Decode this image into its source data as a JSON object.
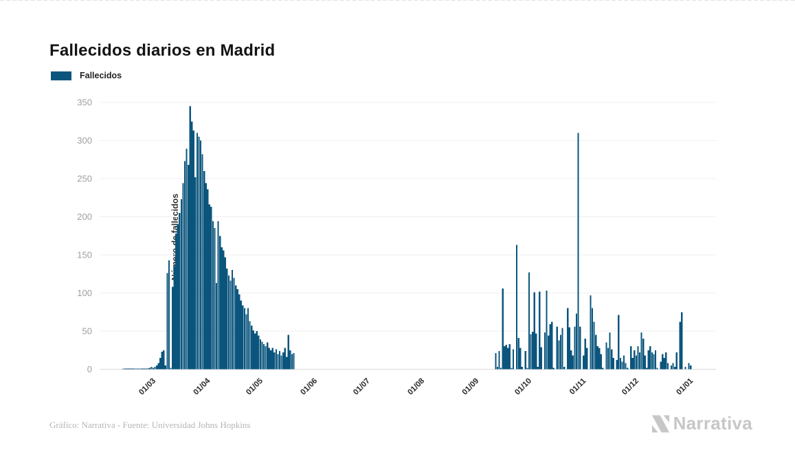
{
  "page": {
    "title": "Fallecidos diarios en Madrid",
    "credit": "Gráfico: Narrativa - Fuente: Universidad Johns Hopkins",
    "brand": "Narrativa"
  },
  "legend": {
    "label": "Fallecidos",
    "color": "#0b557d"
  },
  "chart_data": {
    "type": "bar",
    "title": "Fallecidos diarios en Madrid",
    "series_name": "Fallecidos",
    "xlabel": "",
    "ylabel": "Número de fallecidos",
    "ylim": [
      0,
      350
    ],
    "yticks": [
      0,
      50,
      100,
      150,
      200,
      250,
      300,
      350
    ],
    "xtick_labels": [
      "01/03",
      "01/04",
      "01/05",
      "01/06",
      "01/07",
      "01/08",
      "01/09",
      "01/10",
      "01/11",
      "01/12",
      "01/01"
    ],
    "grid": "horizontal",
    "legend_position": "top-left",
    "bar_color": "#0b557d",
    "series": [
      {
        "name": "Fallecidos",
        "start_date": "13/02/2020",
        "frequency": "daily",
        "values": [
          1,
          1,
          1,
          1,
          1,
          1,
          1,
          1,
          1,
          1,
          1,
          1,
          1,
          1,
          1,
          2,
          3,
          2,
          3,
          5,
          8,
          15,
          23,
          25,
          5,
          126,
          143,
          2,
          108,
          135,
          178,
          190,
          205,
          223,
          244,
          273,
          289,
          268,
          345,
          325,
          313,
          252,
          310,
          305,
          300,
          282,
          260,
          244,
          236,
          216,
          213,
          194,
          185,
          113,
          194,
          175,
          160,
          156,
          147,
          132,
          123,
          116,
          130,
          120,
          110,
          105,
          98,
          90,
          84,
          80,
          72,
          80,
          63,
          57,
          51,
          47,
          50,
          44,
          39,
          36,
          33,
          30,
          35,
          28,
          25,
          28,
          22,
          26,
          20,
          24,
          18,
          22,
          28,
          16,
          45,
          25,
          20,
          21,
          0,
          0,
          0,
          0,
          0,
          0,
          0,
          0,
          0,
          0,
          0,
          0,
          0,
          0,
          0,
          0,
          0,
          0,
          0,
          0,
          0,
          0,
          0,
          0,
          0,
          0,
          0,
          0,
          0,
          0,
          0,
          0,
          0,
          0,
          0,
          0,
          0,
          0,
          0,
          0,
          0,
          0,
          0,
          0,
          0,
          0,
          0,
          0,
          0,
          0,
          0,
          0,
          0,
          0,
          0,
          0,
          0,
          0,
          0,
          0,
          0,
          0,
          0,
          0,
          0,
          0,
          0,
          0,
          0,
          0,
          0,
          0,
          0,
          0,
          0,
          0,
          0,
          0,
          0,
          0,
          0,
          0,
          0,
          0,
          0,
          0,
          0,
          0,
          0,
          0,
          0,
          0,
          0,
          0,
          0,
          0,
          0,
          0,
          0,
          0,
          0,
          0,
          0,
          0,
          0,
          0,
          0,
          0,
          0,
          0,
          0,
          0,
          0,
          0,
          21,
          3,
          24,
          2,
          106,
          30,
          32,
          28,
          33,
          2,
          26,
          0,
          163,
          41,
          28,
          3,
          0,
          24,
          2,
          127,
          46,
          49,
          101,
          47,
          3,
          102,
          29,
          0,
          48,
          103,
          44,
          59,
          62,
          2,
          0,
          56,
          38,
          45,
          54,
          3,
          0,
          80,
          55,
          25,
          18,
          56,
          73,
          310,
          56,
          0,
          18,
          40,
          28,
          0,
          97,
          80,
          62,
          45,
          30,
          28,
          20,
          2,
          0,
          35,
          28,
          48,
          26,
          15,
          0,
          12,
          71,
          15,
          10,
          18,
          8,
          2,
          0,
          30,
          15,
          25,
          18,
          30,
          22,
          48,
          40,
          18,
          2,
          25,
          30,
          22,
          20,
          25,
          2,
          0,
          10,
          20,
          15,
          22,
          8,
          0,
          5,
          8,
          3,
          22,
          0,
          62,
          75,
          0,
          3,
          0,
          8,
          5
        ]
      }
    ]
  }
}
